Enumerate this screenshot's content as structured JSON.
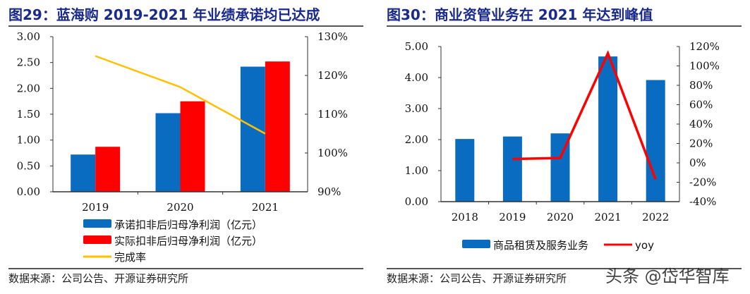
{
  "left": {
    "title": "图29：蓝海购 2019-2021 年业绩承诺均已达成",
    "source": "数据来源：公司公告、开源证券研究所"
  },
  "right": {
    "title": "图30：商业资管业务在 2021 年达到峰值",
    "source": "数据来源：公司公告、开源证券研究所"
  },
  "watermark": "头条 @岱华智库",
  "chart_data": [
    {
      "type": "bar",
      "categories": [
        "2019",
        "2020",
        "2021"
      ],
      "series": [
        {
          "name": "承诺扣非后归母净利润（亿元）",
          "type": "bar",
          "axis": "left",
          "color": "#0a6cc0",
          "values": [
            0.72,
            1.52,
            2.42
          ]
        },
        {
          "name": "实际扣非后归母净利润（亿元）",
          "type": "bar",
          "axis": "left",
          "color": "#ff0000",
          "values": [
            0.87,
            1.75,
            2.52
          ]
        },
        {
          "name": "完成率",
          "type": "line",
          "axis": "right",
          "color": "#ffc000",
          "values": [
            125,
            117,
            105
          ]
        }
      ],
      "ylim": [
        0,
        3
      ],
      "yticks": [
        "0.00",
        "0.50",
        "1.00",
        "1.50",
        "2.00",
        "2.50",
        "3.00"
      ],
      "y2lim": [
        90,
        130
      ],
      "y2ticks": [
        "90%",
        "100%",
        "110%",
        "120%",
        "130%"
      ],
      "legend": "bottom",
      "grid": false
    },
    {
      "type": "bar",
      "categories": [
        "2018",
        "2019",
        "2020",
        "2021",
        "2022"
      ],
      "series": [
        {
          "name": "商品租赁及服务业务",
          "type": "bar",
          "axis": "left",
          "color": "#0a6cc0",
          "values": [
            2.02,
            2.1,
            2.2,
            4.68,
            3.92
          ]
        },
        {
          "name": "yoy",
          "type": "line",
          "axis": "right",
          "color": "#ff0000",
          "values": [
            null,
            4,
            5,
            113,
            -17
          ]
        }
      ],
      "ylim": [
        0,
        5
      ],
      "yticks": [
        "0.00",
        "1.00",
        "2.00",
        "3.00",
        "4.00",
        "5.00"
      ],
      "y2lim": [
        -40,
        120
      ],
      "y2ticks": [
        "-40%",
        "-20%",
        "0%",
        "20%",
        "40%",
        "60%",
        "80%",
        "100%",
        "120%"
      ],
      "legend": "bottom",
      "grid": false
    }
  ]
}
